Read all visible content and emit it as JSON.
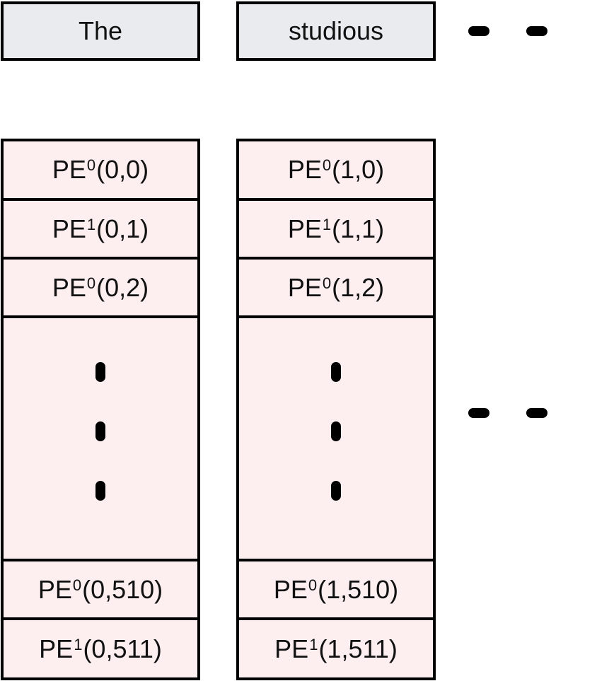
{
  "tokens": [
    "The",
    "studious"
  ],
  "columns": [
    {
      "cells": [
        {
          "base": "PE",
          "sup": "0",
          "args": "(0,0)"
        },
        {
          "base": "PE",
          "sup": "1",
          "args": "(0,1)"
        },
        {
          "base": "PE",
          "sup": "0",
          "args": "(0,2)"
        },
        {
          "base": "PE",
          "sup": "0",
          "args": "(0,510)"
        },
        {
          "base": "PE",
          "sup": "1",
          "args": "(0,511)"
        }
      ]
    },
    {
      "cells": [
        {
          "base": "PE",
          "sup": "0",
          "args": "(1,0)"
        },
        {
          "base": "PE",
          "sup": "1",
          "args": "(1,1)"
        },
        {
          "base": "PE",
          "sup": "0",
          "args": "(1,2)"
        },
        {
          "base": "PE",
          "sup": "0",
          "args": "(1,510)"
        },
        {
          "base": "PE",
          "sup": "1",
          "args": "(1,511)"
        }
      ]
    }
  ],
  "colors": {
    "token_fill": "#e9ebef",
    "cell_fill": "#fdeef0",
    "stroke": "#000000"
  }
}
